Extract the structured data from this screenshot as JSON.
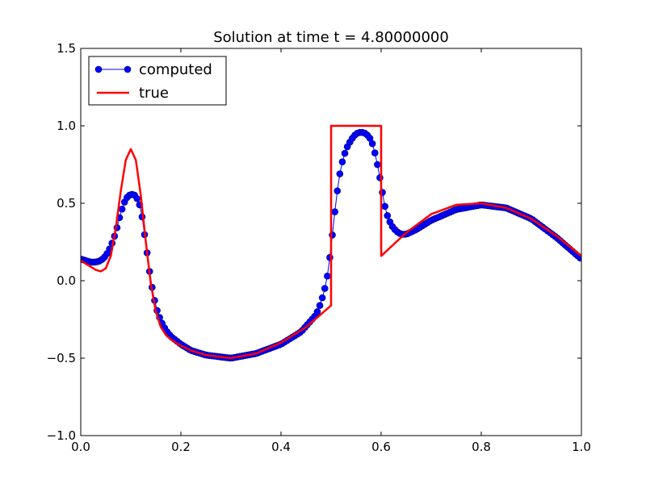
{
  "chart_data": {
    "type": "line",
    "title": "Solution at time t =     4.80000000",
    "xlabel": "",
    "ylabel": "",
    "xlim": [
      0.0,
      1.0
    ],
    "ylim": [
      -1.0,
      1.5
    ],
    "x_ticks": [
      "0.0",
      "0.2",
      "0.4",
      "0.6",
      "0.8",
      "1.0"
    ],
    "y_ticks": [
      "−1.0",
      "−0.5",
      "0.0",
      "0.5",
      "1.0",
      "1.5"
    ],
    "x_tick_values": [
      0.0,
      0.2,
      0.4,
      0.6,
      0.8,
      1.0
    ],
    "y_tick_values": [
      -1.0,
      -0.5,
      0.0,
      0.5,
      1.0,
      1.5
    ],
    "legend_position": "top-left",
    "grid": false,
    "series": [
      {
        "name": "computed",
        "style": "line-with-circle-markers",
        "color": "#0000ff",
        "marker_count": 200
      },
      {
        "name": "true",
        "style": "line",
        "color": "#ff0000",
        "x": [
          0.0,
          0.01,
          0.02,
          0.03,
          0.04,
          0.05,
          0.06,
          0.07,
          0.08,
          0.09,
          0.1,
          0.11,
          0.12,
          0.13,
          0.14,
          0.15,
          0.16,
          0.17,
          0.18,
          0.2,
          0.22,
          0.25,
          0.3,
          0.35,
          0.4,
          0.45,
          0.5,
          0.5001,
          0.6,
          0.6001,
          0.65,
          0.7,
          0.75,
          0.8,
          0.85,
          0.9,
          0.95,
          1.0
        ],
        "y": [
          0.13,
          0.11,
          0.09,
          0.07,
          0.06,
          0.08,
          0.16,
          0.34,
          0.58,
          0.78,
          0.85,
          0.78,
          0.55,
          0.25,
          -0.02,
          -0.2,
          -0.3,
          -0.35,
          -0.38,
          -0.42,
          -0.45,
          -0.48,
          -0.5,
          -0.47,
          -0.4,
          -0.3,
          -0.16,
          1.0,
          1.0,
          0.16,
          0.31,
          0.43,
          0.49,
          0.5,
          0.47,
          0.4,
          0.29,
          0.16
        ]
      }
    ]
  }
}
